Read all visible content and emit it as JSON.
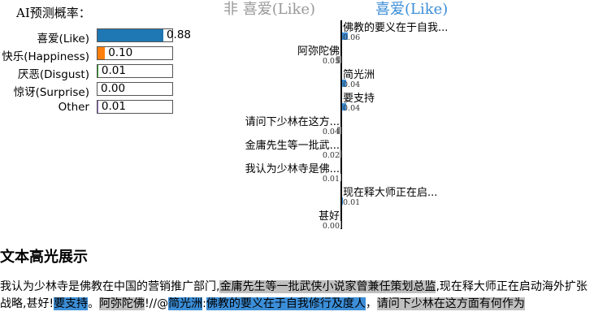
{
  "probabilities": {
    "title": "AI预测概率：",
    "classes": [
      {
        "label": "喜爱(Like)",
        "value": 0.88,
        "display": "0.88",
        "color": "#1f77b4"
      },
      {
        "label": "快乐(Happiness)",
        "value": 0.1,
        "display": "0.10",
        "color": "#ff7f0e"
      },
      {
        "label": "厌恶(Disgust)",
        "value": 0.01,
        "display": "0.01",
        "color": "#2ca02c"
      },
      {
        "label": "惊讶(Surprise)",
        "value": 0.0,
        "display": "0.00",
        "color": "#d62728"
      },
      {
        "label": "Other",
        "value": 0.01,
        "display": "0.01",
        "color": "#9467bd"
      }
    ]
  },
  "explanation": {
    "negative_label": "非 喜爱(Like)",
    "positive_label": "喜爱(Like)",
    "positive_color": "#3c8ed8",
    "negative_color": "#9a9a9a",
    "features": [
      {
        "text": "佛教的要义在于自我...",
        "weight": 0.06,
        "weight_label": "0.06",
        "side": "positive"
      },
      {
        "text": "阿弥陀佛",
        "weight": 0.05,
        "weight_label": "0.05",
        "side": "negative"
      },
      {
        "text": "简光洲",
        "weight": 0.04,
        "weight_label": "0.04",
        "side": "positive"
      },
      {
        "text": "要支持",
        "weight": 0.04,
        "weight_label": "0.04",
        "side": "positive"
      },
      {
        "text": "请问下少林在这方...",
        "weight": 0.04,
        "weight_label": "0.04",
        "side": "negative"
      },
      {
        "text": "金庸先生等一批武...",
        "weight": 0.02,
        "weight_label": "0.02",
        "side": "negative"
      },
      {
        "text": "我认为少林寺是佛...",
        "weight": 0.01,
        "weight_label": "0.01",
        "side": "negative"
      },
      {
        "text": "现在释大师正在启...",
        "weight": 0.01,
        "weight_label": "0.01",
        "side": "positive"
      },
      {
        "text": "甚好",
        "weight": 0.0,
        "weight_label": "0.00",
        "side": "negative"
      }
    ]
  },
  "highlight": {
    "title": "文本高光展示",
    "segments": [
      {
        "text": "我认为少林寺是佛教在中国的营销推广部门,",
        "style": "none"
      },
      {
        "text": "金庸先生等一批武侠小说家曾兼任策划总监",
        "style": "neg"
      },
      {
        "text": ",现在释大师正在启动海外扩张战略,甚好!",
        "style": "none"
      },
      {
        "text": "要支持",
        "style": "pos"
      },
      {
        "text": "。",
        "style": "none"
      },
      {
        "text": "阿弥陀佛",
        "style": "neg"
      },
      {
        "text": "!//@",
        "style": "none"
      },
      {
        "text": "简光洲",
        "style": "pos"
      },
      {
        "text": ":",
        "style": "none"
      },
      {
        "text": "佛教的要义在于自我修行及度人",
        "style": "pos"
      },
      {
        "text": "，",
        "style": "none"
      },
      {
        "text": "请问下少林在这方面有何作为",
        "style": "neg"
      }
    ]
  }
}
